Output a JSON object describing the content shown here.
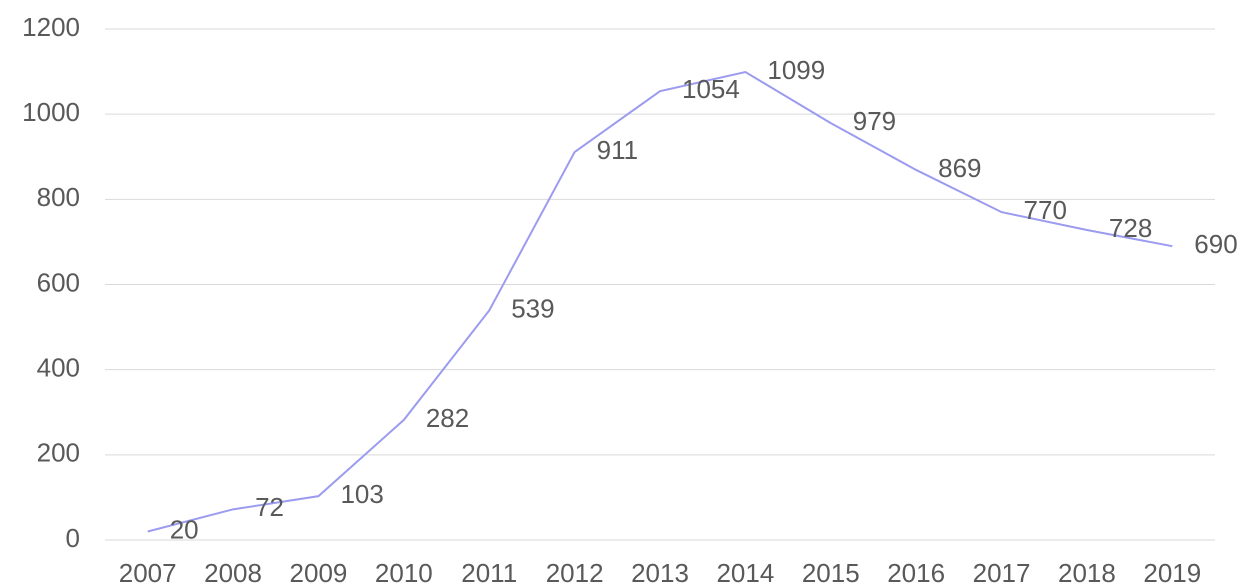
{
  "chart_data": {
    "type": "line",
    "categories": [
      "2007",
      "2008",
      "2009",
      "2010",
      "2011",
      "2012",
      "2013",
      "2014",
      "2015",
      "2016",
      "2017",
      "2018",
      "2019"
    ],
    "values": [
      20,
      72,
      103,
      282,
      539,
      911,
      1054,
      1099,
      979,
      869,
      770,
      728,
      690
    ],
    "color": "#9b9bf0",
    "ylim": [
      0,
      1200
    ],
    "yticks": [
      0,
      200,
      400,
      600,
      800,
      1000,
      1200
    ],
    "grid": true
  }
}
